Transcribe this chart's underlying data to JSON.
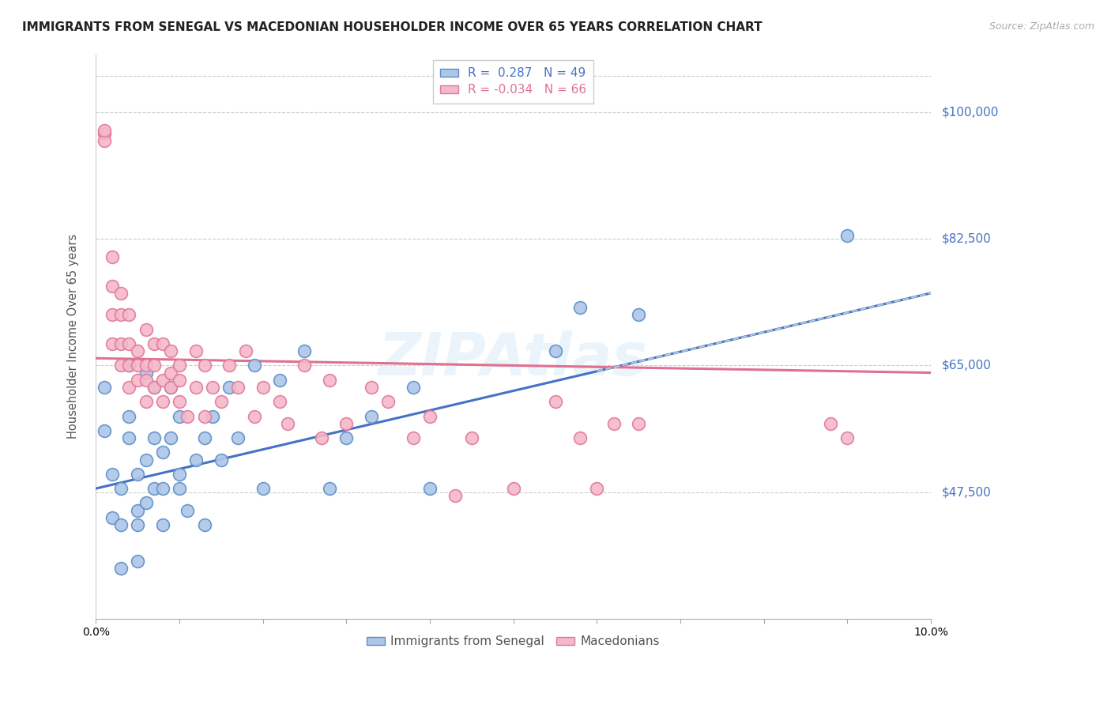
{
  "title": "IMMIGRANTS FROM SENEGAL VS MACEDONIAN HOUSEHOLDER INCOME OVER 65 YEARS CORRELATION CHART",
  "source": "Source: ZipAtlas.com",
  "ylabel": "Householder Income Over 65 years",
  "legend_label1": "Immigrants from Senegal",
  "legend_label2": "Macedonians",
  "R1": 0.287,
  "N1": 49,
  "R2": -0.034,
  "N2": 66,
  "y_ticks": [
    47500,
    65000,
    82500,
    100000
  ],
  "y_tick_labels": [
    "$47,500",
    "$65,000",
    "$82,500",
    "$100,000"
  ],
  "xmin": 0.0,
  "xmax": 0.1,
  "ymin": 30000,
  "ymax": 108000,
  "color_blue_fill": "#aec6e8",
  "color_blue_edge": "#5b8fc9",
  "color_blue_line": "#4472c4",
  "color_pink_fill": "#f4b8c8",
  "color_pink_edge": "#e0789a",
  "color_pink_line": "#e07090",
  "color_dashed": "#b0c8d8",
  "watermark": "ZIPAtlas",
  "blue_line_x0": 0.0,
  "blue_line_y0": 48000,
  "blue_line_x1": 0.1,
  "blue_line_y1": 75000,
  "pink_line_x0": 0.0,
  "pink_line_y0": 66000,
  "pink_line_x1": 0.1,
  "pink_line_y1": 64000,
  "dash_line_x0": 0.06,
  "dash_line_x1": 0.1,
  "blue_scatter_x": [
    0.001,
    0.001,
    0.002,
    0.002,
    0.003,
    0.003,
    0.003,
    0.004,
    0.004,
    0.004,
    0.005,
    0.005,
    0.005,
    0.005,
    0.006,
    0.006,
    0.006,
    0.007,
    0.007,
    0.007,
    0.008,
    0.008,
    0.008,
    0.009,
    0.009,
    0.01,
    0.01,
    0.01,
    0.011,
    0.012,
    0.013,
    0.013,
    0.014,
    0.015,
    0.016,
    0.017,
    0.019,
    0.02,
    0.022,
    0.025,
    0.028,
    0.03,
    0.033,
    0.038,
    0.04,
    0.055,
    0.058,
    0.065,
    0.09
  ],
  "blue_scatter_y": [
    56000,
    62000,
    50000,
    44000,
    48000,
    43000,
    37000,
    55000,
    58000,
    65000,
    45000,
    50000,
    43000,
    38000,
    46000,
    52000,
    64000,
    62000,
    55000,
    48000,
    43000,
    53000,
    48000,
    55000,
    62000,
    50000,
    48000,
    58000,
    45000,
    52000,
    55000,
    43000,
    58000,
    52000,
    62000,
    55000,
    65000,
    48000,
    63000,
    67000,
    48000,
    55000,
    58000,
    62000,
    48000,
    67000,
    73000,
    72000,
    83000
  ],
  "pink_scatter_x": [
    0.001,
    0.001,
    0.001,
    0.002,
    0.002,
    0.002,
    0.002,
    0.003,
    0.003,
    0.003,
    0.003,
    0.004,
    0.004,
    0.004,
    0.004,
    0.005,
    0.005,
    0.005,
    0.006,
    0.006,
    0.006,
    0.006,
    0.007,
    0.007,
    0.007,
    0.008,
    0.008,
    0.008,
    0.009,
    0.009,
    0.009,
    0.01,
    0.01,
    0.01,
    0.011,
    0.012,
    0.012,
    0.013,
    0.013,
    0.014,
    0.015,
    0.016,
    0.017,
    0.018,
    0.019,
    0.02,
    0.022,
    0.023,
    0.025,
    0.027,
    0.028,
    0.03,
    0.033,
    0.035,
    0.038,
    0.04,
    0.043,
    0.045,
    0.05,
    0.055,
    0.058,
    0.06,
    0.062,
    0.065,
    0.088,
    0.09
  ],
  "pink_scatter_y": [
    97000,
    96000,
    97500,
    76000,
    80000,
    72000,
    68000,
    72000,
    68000,
    65000,
    75000,
    62000,
    68000,
    72000,
    65000,
    65000,
    63000,
    67000,
    65000,
    63000,
    70000,
    60000,
    68000,
    65000,
    62000,
    63000,
    60000,
    68000,
    67000,
    64000,
    62000,
    65000,
    63000,
    60000,
    58000,
    67000,
    62000,
    65000,
    58000,
    62000,
    60000,
    65000,
    62000,
    67000,
    58000,
    62000,
    60000,
    57000,
    65000,
    55000,
    63000,
    57000,
    62000,
    60000,
    55000,
    58000,
    47000,
    55000,
    48000,
    60000,
    55000,
    48000,
    57000,
    57000,
    57000,
    55000
  ]
}
